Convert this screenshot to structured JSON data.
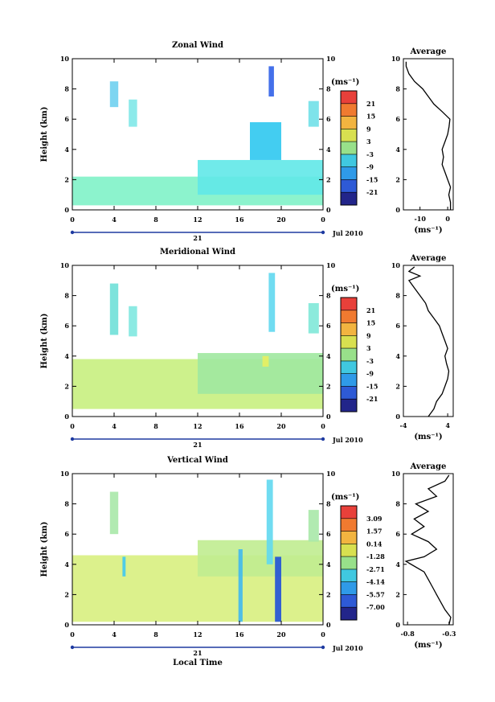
{
  "chart_data": [
    {
      "type": "heatmap",
      "title": "Zonal Wind",
      "ylabel": "Height (km)",
      "x_ticks": [
        "0",
        "4",
        "8",
        "12",
        "16",
        "20",
        "0"
      ],
      "y_ticks": [
        "0",
        "2",
        "4",
        "6",
        "8",
        "10"
      ],
      "xlim": [
        0,
        24
      ],
      "ylim": [
        0,
        10
      ],
      "date_label": "21",
      "month_label": "Jul 2010",
      "colorbar": {
        "unit": "(ms⁻¹)",
        "ticks": [
          "21",
          "15",
          "9",
          "3",
          "-3",
          "-9",
          "-15",
          "-21"
        ]
      },
      "average": {
        "title": "Average",
        "xlabel": "(ms⁻¹)",
        "x_ticks": [
          "-10",
          "0"
        ],
        "xlim": [
          -16,
          2
        ],
        "y_ticks": [
          "0",
          "2",
          "4",
          "6",
          "8",
          "10"
        ],
        "profile": [
          [
            1,
            0
          ],
          [
            1,
            0.5
          ],
          [
            0.4,
            1
          ],
          [
            1,
            1.5
          ],
          [
            0,
            2
          ],
          [
            -1,
            2.5
          ],
          [
            -2,
            3
          ],
          [
            -1.5,
            3.5
          ],
          [
            -2,
            4
          ],
          [
            -1,
            4.5
          ],
          [
            0,
            5
          ],
          [
            0.5,
            5.5
          ],
          [
            0.8,
            6
          ],
          [
            -2,
            6.5
          ],
          [
            -5,
            7
          ],
          [
            -7,
            7.5
          ],
          [
            -9,
            8
          ],
          [
            -12,
            8.5
          ],
          [
            -14,
            9
          ],
          [
            -15,
            9.5
          ],
          [
            -15,
            9.8
          ]
        ]
      },
      "regions": [
        {
          "color": "#80f2c8",
          "x": [
            0,
            24
          ],
          "y": [
            0.3,
            2.2
          ]
        },
        {
          "color": "#60e8e8",
          "x": [
            12,
            24
          ],
          "y": [
            1,
            3.3
          ]
        },
        {
          "color": "#2fc8f0",
          "x": [
            17,
            20
          ],
          "y": [
            3.3,
            5.8
          ]
        },
        {
          "color": "#6fd0ef",
          "x": [
            3.6,
            4.4
          ],
          "y": [
            6.8,
            8.5
          ]
        },
        {
          "color": "#80e8e8",
          "x": [
            5.4,
            6.2
          ],
          "y": [
            5.5,
            7.3
          ]
        },
        {
          "color": "#3060e8",
          "x": [
            18.8,
            19.3
          ],
          "y": [
            7.5,
            9.5
          ]
        },
        {
          "color": "#70e0e8",
          "x": [
            22.6,
            23.6
          ],
          "y": [
            5.5,
            7.2
          ]
        }
      ]
    },
    {
      "type": "heatmap",
      "title": "Meridional Wind",
      "ylabel": "Height (km)",
      "x_ticks": [
        "0",
        "4",
        "8",
        "12",
        "16",
        "20",
        "0"
      ],
      "y_ticks": [
        "0",
        "2",
        "4",
        "6",
        "8",
        "10"
      ],
      "xlim": [
        0,
        24
      ],
      "ylim": [
        0,
        10
      ],
      "date_label": "21",
      "month_label": "Jul 2010",
      "colorbar": {
        "unit": "(ms⁻¹)",
        "ticks": [
          "21",
          "15",
          "9",
          "3",
          "-3",
          "-9",
          "-15",
          "-21"
        ]
      },
      "average": {
        "title": "Average",
        "xlabel": "(ms⁻¹)",
        "x_ticks": [
          "-4",
          "4"
        ],
        "xlim": [
          -4,
          5
        ],
        "y_ticks": [
          "0",
          "2",
          "4",
          "6",
          "8",
          "10"
        ],
        "profile": [
          [
            0.5,
            0
          ],
          [
            1.5,
            0.5
          ],
          [
            2,
            1
          ],
          [
            3,
            1.5
          ],
          [
            3.5,
            2
          ],
          [
            4,
            2.5
          ],
          [
            4.2,
            3
          ],
          [
            3.8,
            3.5
          ],
          [
            3.5,
            4
          ],
          [
            4,
            4.5
          ],
          [
            3.5,
            5
          ],
          [
            3,
            5.5
          ],
          [
            2.5,
            6
          ],
          [
            1.5,
            6.5
          ],
          [
            0.5,
            7
          ],
          [
            0,
            7.5
          ],
          [
            -1,
            8
          ],
          [
            -2,
            8.5
          ],
          [
            -3,
            9
          ],
          [
            -1,
            9.3
          ],
          [
            -3,
            9.6
          ],
          [
            -2,
            9.9
          ]
        ]
      },
      "regions": [
        {
          "color": "#c8f080",
          "x": [
            0,
            24
          ],
          "y": [
            0.5,
            3.8
          ]
        },
        {
          "color": "#a0e8a0",
          "x": [
            12,
            24
          ],
          "y": [
            1.5,
            4.2
          ]
        },
        {
          "color": "#6fe0d8",
          "x": [
            3.6,
            4.4
          ],
          "y": [
            5.4,
            8.8
          ]
        },
        {
          "color": "#80e8e0",
          "x": [
            5.4,
            6.2
          ],
          "y": [
            5.3,
            7.3
          ]
        },
        {
          "color": "#60d8f0",
          "x": [
            18.8,
            19.4
          ],
          "y": [
            5.6,
            9.5
          ]
        },
        {
          "color": "#80e8d8",
          "x": [
            22.6,
            23.6
          ],
          "y": [
            5.5,
            7.5
          ]
        },
        {
          "color": "#e8f060",
          "x": [
            18.2,
            18.8
          ],
          "y": [
            3.3,
            4.0
          ]
        }
      ]
    },
    {
      "type": "heatmap",
      "title": "Vertical Wind",
      "ylabel": "Height (km)",
      "xlabel": "Local Time",
      "x_ticks": [
        "0",
        "4",
        "8",
        "12",
        "16",
        "20",
        "0"
      ],
      "y_ticks": [
        "0",
        "2",
        "4",
        "6",
        "8",
        "10"
      ],
      "xlim": [
        0,
        24
      ],
      "ylim": [
        0,
        10
      ],
      "date_label": "21",
      "month_label": "Jul 2010",
      "colorbar": {
        "unit": "(ms⁻¹)",
        "ticks": [
          "3.09",
          "1.57",
          "0.14",
          "-1.28",
          "-2.71",
          "-4.14",
          "-5.57",
          "-7.00"
        ]
      },
      "average": {
        "title": "Average",
        "xlabel": "(ms⁻¹)",
        "x_ticks": [
          "-0.8",
          "-0.3"
        ],
        "xlim": [
          -0.85,
          -0.25
        ],
        "y_ticks": [
          "0",
          "2",
          "4",
          "6",
          "8",
          "10"
        ],
        "profile": [
          [
            -0.3,
            0
          ],
          [
            -0.28,
            0.5
          ],
          [
            -0.35,
            1
          ],
          [
            -0.4,
            1.5
          ],
          [
            -0.45,
            2
          ],
          [
            -0.5,
            2.5
          ],
          [
            -0.55,
            3
          ],
          [
            -0.6,
            3.5
          ],
          [
            -0.82,
            4.2
          ],
          [
            -0.6,
            4.5
          ],
          [
            -0.45,
            5
          ],
          [
            -0.55,
            5.5
          ],
          [
            -0.75,
            6
          ],
          [
            -0.6,
            6.5
          ],
          [
            -0.72,
            7
          ],
          [
            -0.55,
            7.5
          ],
          [
            -0.7,
            8
          ],
          [
            -0.45,
            8.5
          ],
          [
            -0.55,
            9
          ],
          [
            -0.35,
            9.5
          ],
          [
            -0.3,
            9.9
          ]
        ]
      },
      "regions": [
        {
          "color": "#d8f080",
          "x": [
            0,
            24
          ],
          "y": [
            0.2,
            4.6
          ]
        },
        {
          "color": "#c0ec90",
          "x": [
            12,
            24
          ],
          "y": [
            3.2,
            5.6
          ]
        },
        {
          "color": "#a8e8a8",
          "x": [
            3.6,
            4.4
          ],
          "y": [
            6.0,
            8.8
          ]
        },
        {
          "color": "#a8e8a8",
          "x": [
            22.6,
            23.6
          ],
          "y": [
            5.5,
            7.6
          ]
        },
        {
          "color": "#60d8f0",
          "x": [
            18.6,
            19.2
          ],
          "y": [
            4.0,
            9.6
          ]
        },
        {
          "color": "#2050d8",
          "x": [
            19.4,
            20.0
          ],
          "y": [
            0.2,
            4.5
          ]
        },
        {
          "color": "#40b8f0",
          "x": [
            15.9,
            16.3
          ],
          "y": [
            0.2,
            5.0
          ]
        },
        {
          "color": "#40c8f0",
          "x": [
            4.8,
            5.1
          ],
          "y": [
            3.2,
            4.5
          ]
        }
      ]
    }
  ]
}
